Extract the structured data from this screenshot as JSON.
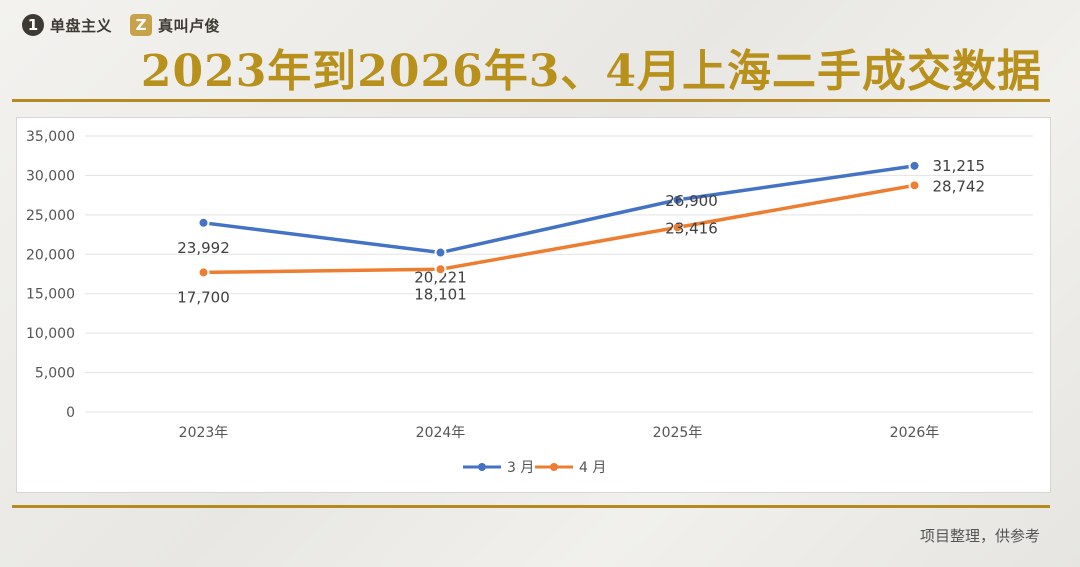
{
  "brand": {
    "mark1": "1",
    "name1": "单盘主义",
    "mark2": "Z",
    "name2": "真叫卢俊"
  },
  "title": "2023年到2026年3、4月上海二手成交数据",
  "footer": "项目整理，供参考",
  "colors": {
    "title": "#b8901c",
    "rule": "#b58a1f",
    "series_march": "#4472c4",
    "series_april": "#ed7d31"
  },
  "chart_data": {
    "type": "line",
    "categories": [
      "2023年",
      "2024年",
      "2025年",
      "2026年"
    ],
    "yticks": [
      "0",
      "5,000",
      "10,000",
      "15,000",
      "20,000",
      "25,000",
      "30,000",
      "35,000"
    ],
    "ylim": [
      0,
      35000
    ],
    "grid": true,
    "legend": "bottom",
    "series": [
      {
        "name": "3 月",
        "values": [
          23992,
          20221,
          26900,
          31215
        ],
        "labels": [
          "23,992",
          "20,221",
          "26,900",
          "31,215"
        ],
        "color": "#4472c4"
      },
      {
        "name": "4 月",
        "values": [
          17700,
          18101,
          23416,
          28742
        ],
        "labels": [
          "17,700",
          "18,101",
          "23,416",
          "28,742"
        ],
        "color": "#ed7d31"
      }
    ]
  }
}
